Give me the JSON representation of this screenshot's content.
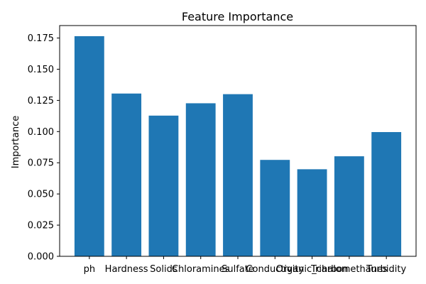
{
  "chart_data": {
    "type": "bar",
    "title": "Feature Importance",
    "xlabel": "",
    "ylabel": "Importance",
    "categories": [
      "ph",
      "Hardness",
      "Solids",
      "Chloramines",
      "Sulfate",
      "Conductivity",
      "Organic_carbon",
      "Trihalomethanes",
      "Turbidity"
    ],
    "values": [
      0.1765,
      0.1305,
      0.1128,
      0.1227,
      0.13,
      0.0773,
      0.0698,
      0.0802,
      0.0996
    ],
    "ylim": [
      0,
      0.185
    ],
    "yticks": [
      "0.000",
      "0.025",
      "0.050",
      "0.075",
      "0.100",
      "0.125",
      "0.150",
      "0.175"
    ],
    "bar_color": "#1f77b4",
    "grid": false,
    "legend": "none"
  }
}
